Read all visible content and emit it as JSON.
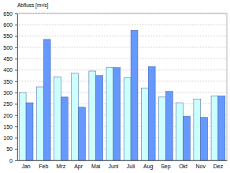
{
  "chart_data": {
    "type": "bar",
    "y_label": "Abfluss [m³/s]",
    "categories": [
      "Jan",
      "Feb",
      "Mrz",
      "Apr",
      "Mai",
      "Juni",
      "Juli",
      "Aug",
      "Sep",
      "Okt",
      "Nov",
      "Dez"
    ],
    "series": [
      {
        "color": "#ccffff",
        "values": [
          300,
          325,
          370,
          385,
          395,
          410,
          365,
          320,
          280,
          255,
          270,
          285
        ]
      },
      {
        "color": "#6699ff",
        "values": [
          255,
          535,
          280,
          235,
          375,
          410,
          575,
          415,
          305,
          195,
          190,
          285
        ]
      }
    ],
    "ylim": [
      0,
      650
    ],
    "yticks": [
      0,
      50,
      100,
      150,
      200,
      250,
      300,
      350,
      400,
      450,
      500,
      550,
      600,
      650
    ],
    "grid": true
  }
}
